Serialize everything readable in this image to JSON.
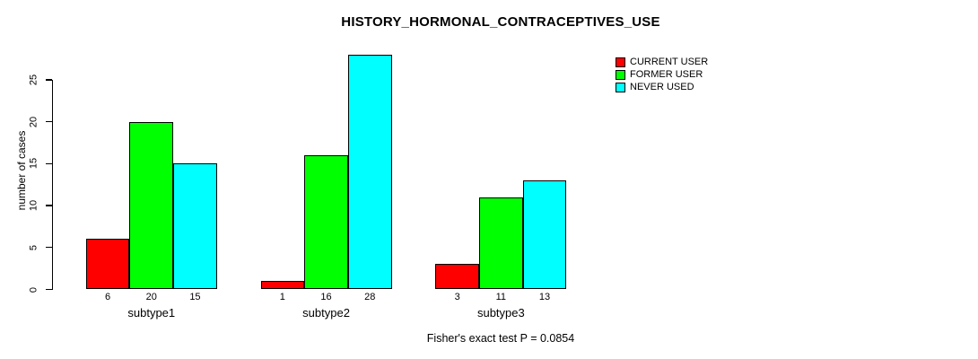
{
  "title": "HISTORY_HORMONAL_CONTRACEPTIVES_USE",
  "ylabel": "number of cases",
  "caption": "Fisher's exact test P = 0.0854",
  "legend": {
    "position": "top-right",
    "entries": [
      {
        "label": "CURRENT USER",
        "color": "#FF0000"
      },
      {
        "label": "FORMER USER",
        "color": "#00FF00"
      },
      {
        "label": "NEVER USED",
        "color": "#00FFFF"
      }
    ]
  },
  "chart_data": {
    "type": "bar",
    "grouped": "beside",
    "title": "HISTORY_HORMONAL_CONTRACEPTIVES_USE",
    "xlabel": "",
    "ylabel": "number of cases",
    "categories": [
      "subtype1",
      "subtype2",
      "subtype3"
    ],
    "series": [
      {
        "name": "CURRENT USER",
        "color": "#FF0000",
        "values": [
          6,
          1,
          3
        ]
      },
      {
        "name": "FORMER USER",
        "color": "#00FF00",
        "values": [
          20,
          16,
          11
        ]
      },
      {
        "name": "NEVER USED",
        "color": "#00FFFF",
        "values": [
          15,
          28,
          13
        ]
      }
    ],
    "bar_value_labels": [
      [
        6,
        20,
        15
      ],
      [
        1,
        16,
        28
      ],
      [
        3,
        11,
        13
      ]
    ],
    "yticks": [
      0,
      5,
      10,
      15,
      20,
      25
    ],
    "ylim": [
      0,
      28
    ],
    "grid": false,
    "bar_border_color": "#000000",
    "legend_position": "top-right",
    "annotation": "Fisher's exact test P = 0.0854"
  }
}
